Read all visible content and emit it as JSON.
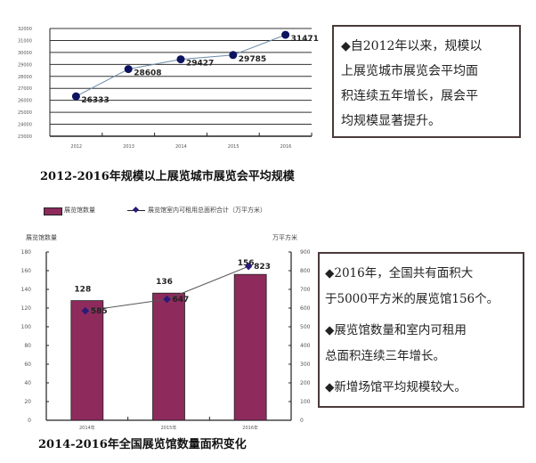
{
  "chart_data": [
    {
      "type": "line",
      "title": "2012-2016年规模以上展览城市展览会平均规模",
      "xlabel": "",
      "ylabel": "",
      "categories": [
        "2012",
        "2013",
        "2014",
        "2015",
        "2016"
      ],
      "values": [
        26333,
        28608,
        29427,
        29785,
        31471
      ],
      "data_labels": [
        "26333",
        "28608",
        "29427",
        "29785",
        "31471"
      ],
      "ylim": [
        23000,
        32000
      ],
      "yticks": [
        "32000",
        "31000",
        "30000",
        "29000",
        "28000",
        "27000",
        "26000",
        "25000",
        "24000",
        "23000"
      ],
      "grid": true,
      "legend": null,
      "colors": {
        "line": "#6b8aa8",
        "marker": "#0c1460"
      }
    },
    {
      "type": "bar",
      "title": "2014-2016年全国展览馆数量面积变化",
      "categories": [
        "2014年",
        "2015年",
        "2016年"
      ],
      "series": [
        {
          "name": "展览馆数量",
          "type": "bar",
          "axis": "left",
          "values": [
            128,
            136,
            156
          ],
          "data_labels": [
            "128",
            "136",
            "156"
          ],
          "color": "#8e2a5c"
        },
        {
          "name": "展览馆室内可租用总面积合计（万平方米）",
          "type": "line",
          "axis": "right",
          "values": [
            585,
            647,
            823
          ],
          "data_labels": [
            "585",
            "647",
            "823"
          ],
          "color": "#2a1a7a"
        }
      ],
      "ylabel": "展览馆数量",
      "ylabel_right": "万平方米",
      "ylim": [
        0,
        180
      ],
      "ylim_right": [
        0,
        900
      ],
      "yticks": [
        "180",
        "160",
        "140",
        "120",
        "100",
        "80",
        "60",
        "40",
        "20",
        "0"
      ],
      "yticks_right": [
        "900",
        "800",
        "700",
        "600",
        "500",
        "400",
        "300",
        "200",
        "100",
        "0"
      ],
      "legend_position": "top",
      "grid": false
    }
  ],
  "notes": {
    "top": {
      "lines": [
        "◆自2012年以来，规模以",
        "上展览城市展览会平均面",
        "积连续五年增长，展会平",
        "均规模显著提升。"
      ]
    },
    "bottom": {
      "lines": [
        "◆2016年，全国共有面积大",
        "于5000平方米的展览馆156个。",
        "◆展览馆数量和室内可租用",
        "总面积连续三年增长。",
        "◆新增场馆平均规模较大。"
      ]
    }
  },
  "legend": {
    "bar_label": "展览馆数量",
    "line_label": "展览馆室内可租用总面积合计（万平方米）"
  },
  "axis_titles": {
    "left": "展览馆数量",
    "right": "万平方米"
  }
}
